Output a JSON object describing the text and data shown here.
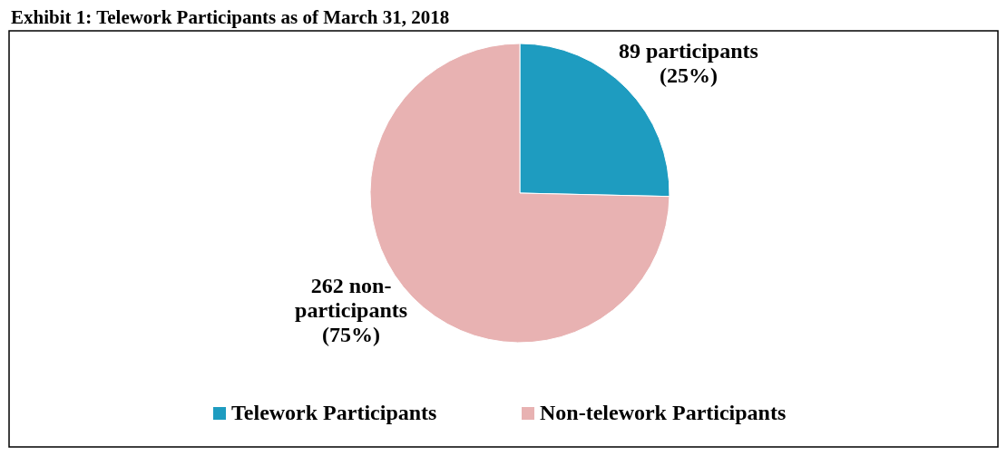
{
  "chart_data": {
    "type": "pie",
    "title": "Exhibit 1: Telework Participants as of March 31, 2018",
    "categories": [
      "Telework Participants",
      "Non-telework Participants"
    ],
    "values": [
      89,
      262
    ],
    "colors": [
      "#1e9cc0",
      "#e8b2b2"
    ],
    "value_labels": [
      "89 participants\n(25%)",
      "262 non-\nparticipants\n(75%)"
    ],
    "legend": "bottom"
  }
}
